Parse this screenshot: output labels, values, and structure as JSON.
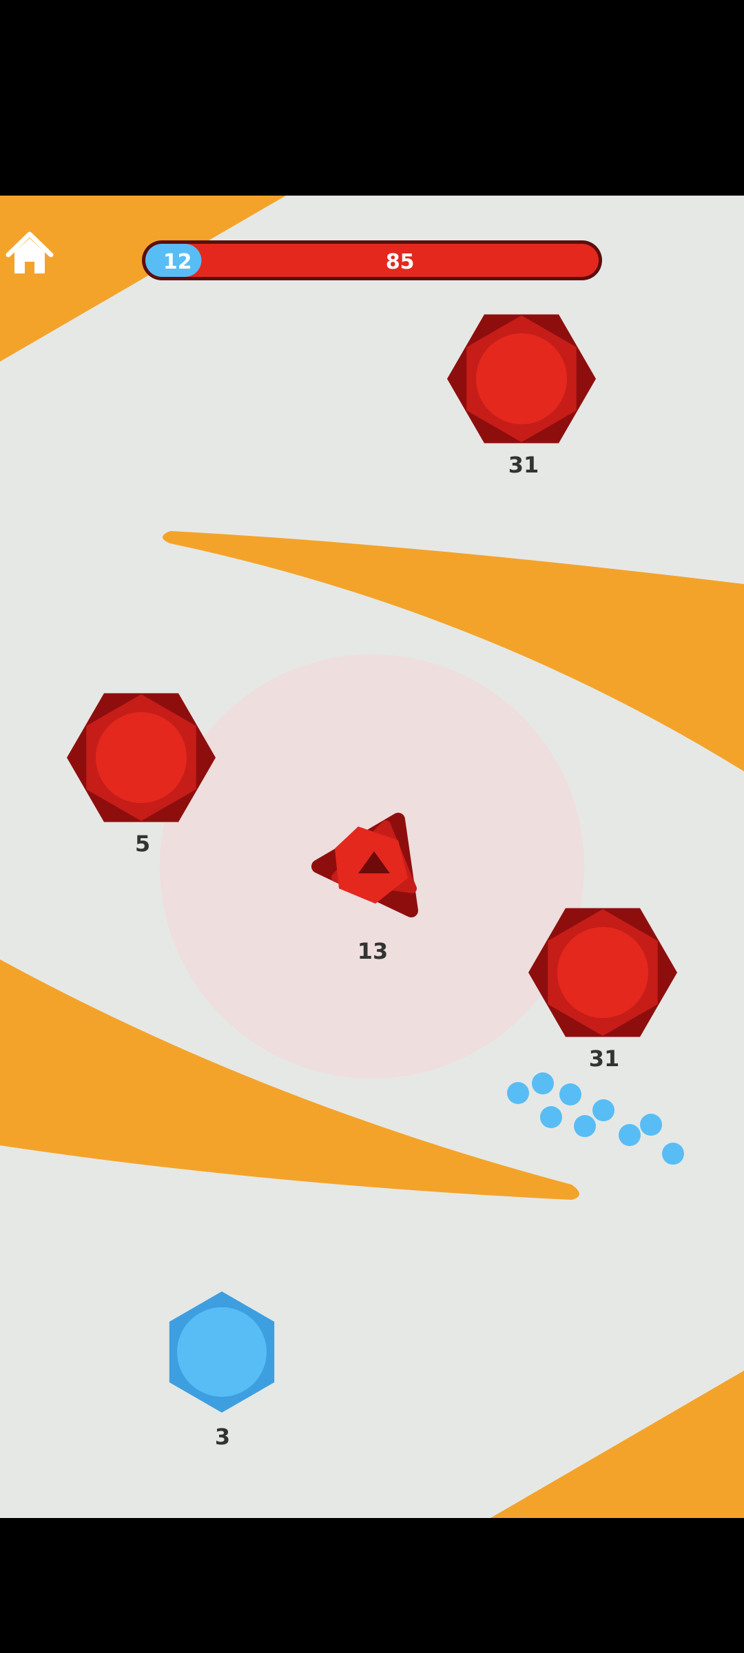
{
  "colors": {
    "field": "#e6e8e5",
    "barrier": "#f4a32a",
    "red_dark": "#8e0e0e",
    "red_mid": "#c61d18",
    "red_light": "#e4281e",
    "blue_dark": "#3d9fe0",
    "blue_light": "#58bdf5",
    "range_ring": "#f4d6d8",
    "number_text": "#333333",
    "bar_blue": "#58bdf5",
    "bar_red": "#e4281e",
    "bar_outline": "#5a0f0f",
    "letterbox": "#000000"
  },
  "header": {
    "home_icon": "home-icon",
    "score_bar": {
      "blue_score": "12",
      "red_score": "85",
      "blue_value": 12,
      "red_value": 85
    }
  },
  "bases": {
    "red_top": {
      "count": "31"
    },
    "red_left": {
      "count": "5"
    },
    "red_player": {
      "count": "13"
    },
    "red_right": {
      "count": "31"
    },
    "blue_bottom": {
      "count": "3"
    }
  },
  "units": {
    "blue_dots": 10
  }
}
